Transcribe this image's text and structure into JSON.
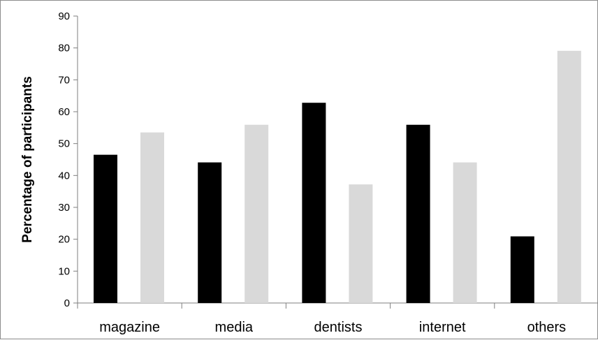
{
  "chart_data": {
    "type": "bar",
    "title": "",
    "xlabel": "",
    "ylabel": "Percentage of participants",
    "categories": [
      "magazine",
      "media",
      "dentists",
      "internet",
      "others"
    ],
    "series": [
      {
        "name": "",
        "color": "#000000",
        "values": [
          46.5,
          44.1,
          62.8,
          55.9,
          20.9
        ]
      },
      {
        "name": "",
        "color": "#d9d9d9",
        "values": [
          53.5,
          55.9,
          37.2,
          44.1,
          79.1
        ]
      }
    ],
    "ylim": [
      0,
      90
    ],
    "yticks": [
      0,
      10,
      20,
      30,
      40,
      50,
      60,
      70,
      80,
      90
    ],
    "grid": false,
    "legend": "none"
  }
}
